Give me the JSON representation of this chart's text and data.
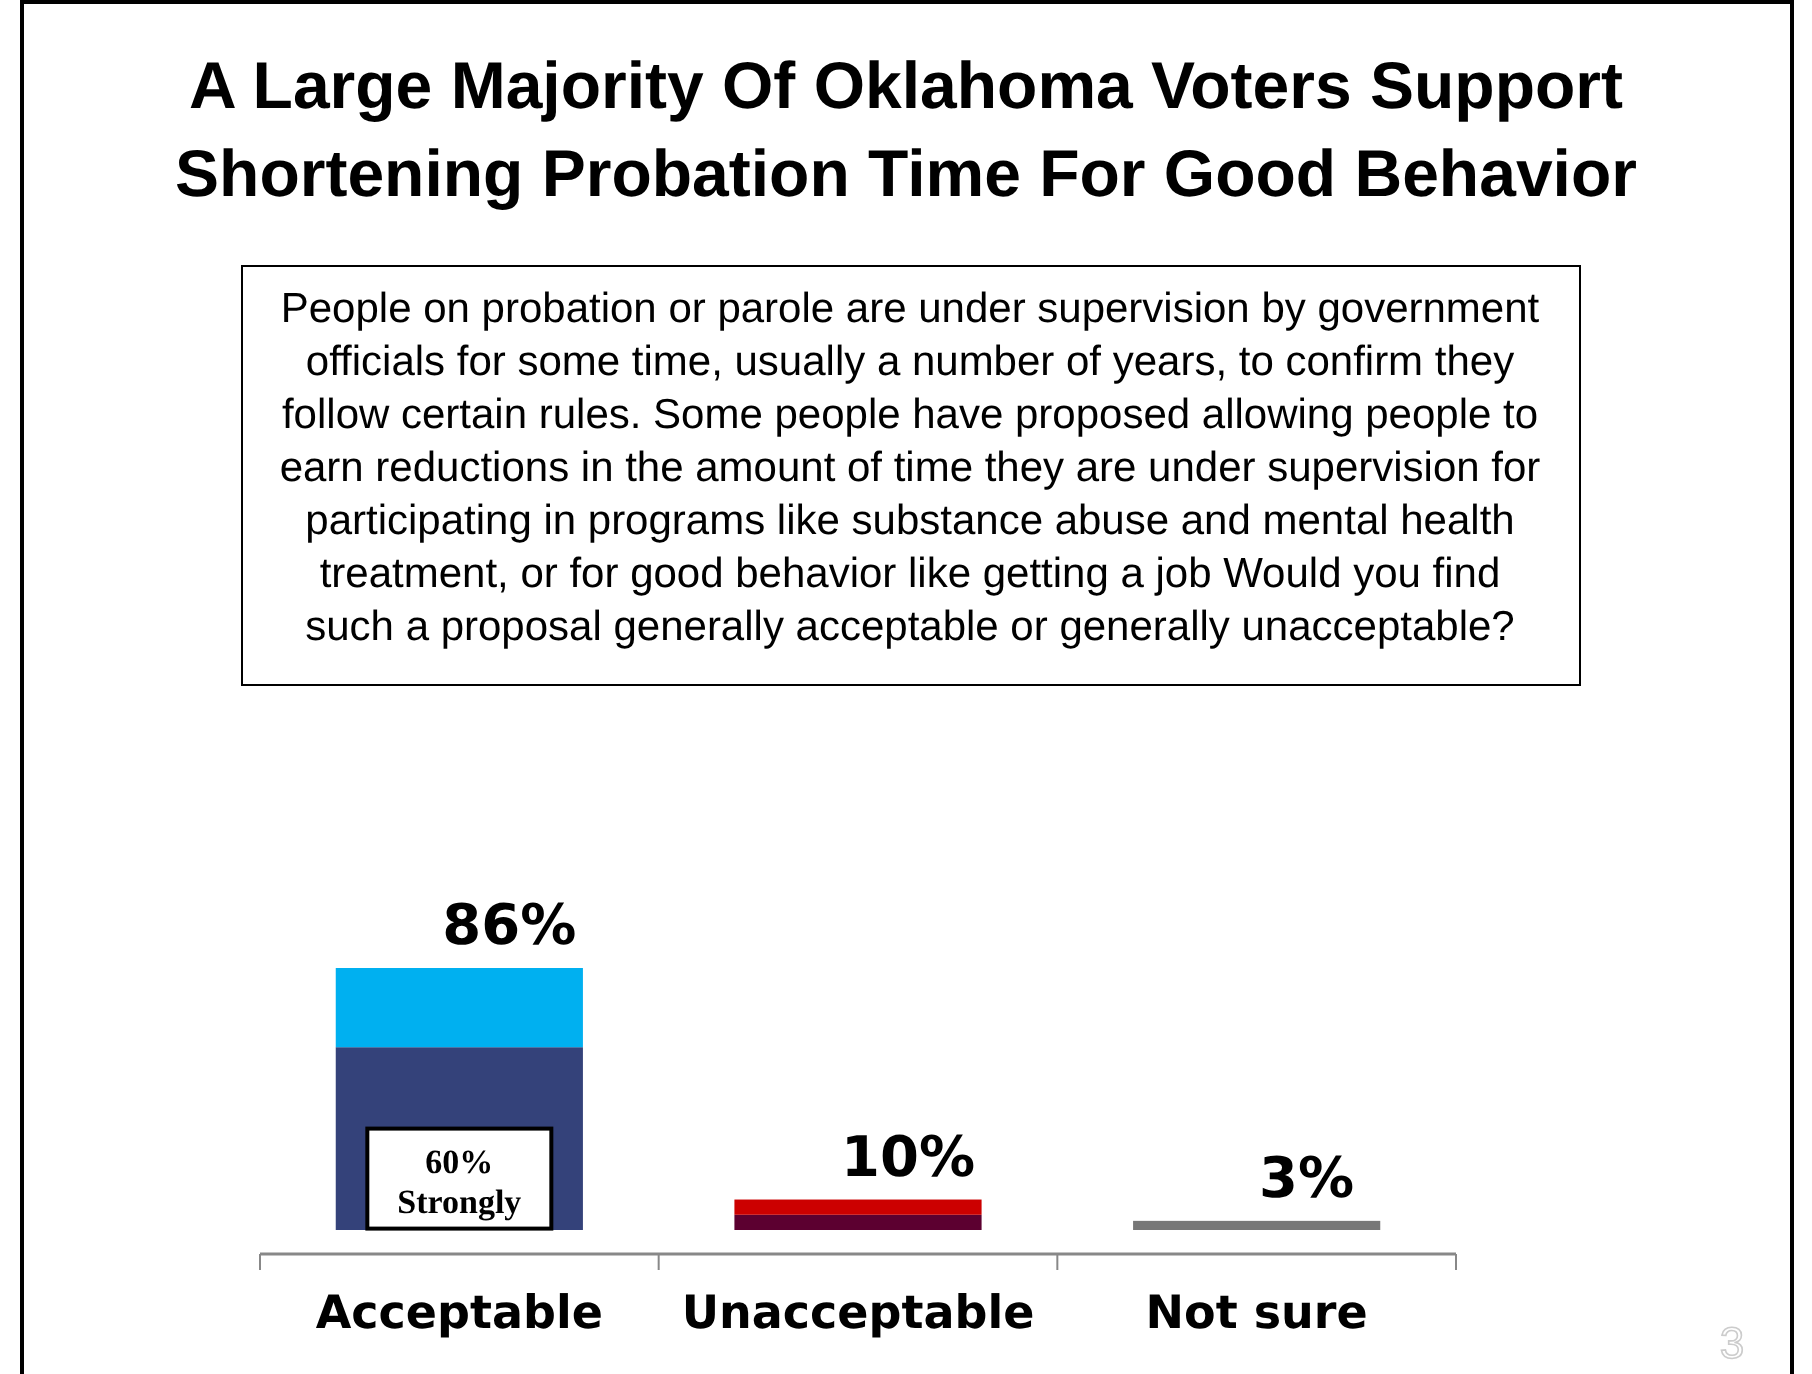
{
  "chart_data": {
    "type": "bar",
    "stacked": true,
    "title": "A Large Majority Of Oklahoma Voters Support Shortening Probation Time For Good Behavior",
    "subtitle": "People on probation or parole are under supervision by government officials for some time, usually a number of years, to confirm they follow certain rules. Some people have proposed allowing people to earn reductions in the amount of time they are under supervision for participating in programs like substance abuse and mental health treatment, or for good behavior like getting a job Would you find such a proposal generally acceptable or generally unacceptable?",
    "categories": [
      "Acceptable",
      "Unacceptable",
      "Not sure"
    ],
    "series": [
      {
        "colors": [
          "#34427a",
          "#5c0030",
          null
        ],
        "values": [
          60,
          5,
          null
        ],
        "value_labels": [
          "60%\nStrongly",
          null,
          null
        ]
      },
      {
        "colors": [
          "#00b0f0",
          "#cc0000",
          "#777777"
        ],
        "values": [
          26,
          5,
          3
        ]
      }
    ],
    "totals": [
      "86%",
      "10%",
      "3%"
    ],
    "annotations": [
      "3"
    ]
  }
}
